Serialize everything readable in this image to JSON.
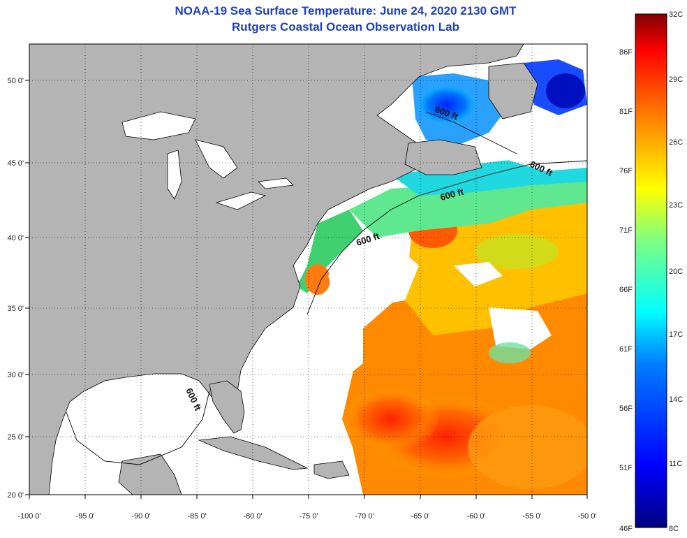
{
  "header": {
    "title": "NOAA-19 Sea Surface Temperature:  June 24, 2020 2130 GMT",
    "subtitle": "Rutgers Coastal Ocean Observation Lab"
  },
  "axes": {
    "longitude_ticks": [
      "-100 0'",
      "-95 0'",
      "-90 0'",
      "-85 0'",
      "-80 0'",
      "-75 0'",
      "-70 0'",
      "-65 0'",
      "-60 0'",
      "-55 0'",
      "-50 0'"
    ],
    "latitude_ticks": [
      "50 0'",
      "45 0'",
      "40 0'",
      "35 0'",
      "30 0'",
      "25 0'",
      "20 0'"
    ]
  },
  "depth_contour_label": "600 ft",
  "colorbar": {
    "celsius_labels": [
      "32C",
      "29C",
      "26C",
      "23C",
      "20C",
      "17C",
      "14C",
      "11C",
      "8C"
    ],
    "fahrenheit_labels": [
      "86F",
      "81F",
      "76F",
      "71F",
      "66F",
      "61F",
      "56F",
      "51F",
      "46F"
    ]
  },
  "colors": {
    "title": "#1f3fbf",
    "land": "#b4b4b4",
    "ocean_no_data": "#ffffff",
    "colormap": [
      "#00007f",
      "#0000ff",
      "#007fff",
      "#00ffff",
      "#7fff7f",
      "#ffff00",
      "#ff7f00",
      "#ff0000",
      "#7f0000"
    ]
  }
}
